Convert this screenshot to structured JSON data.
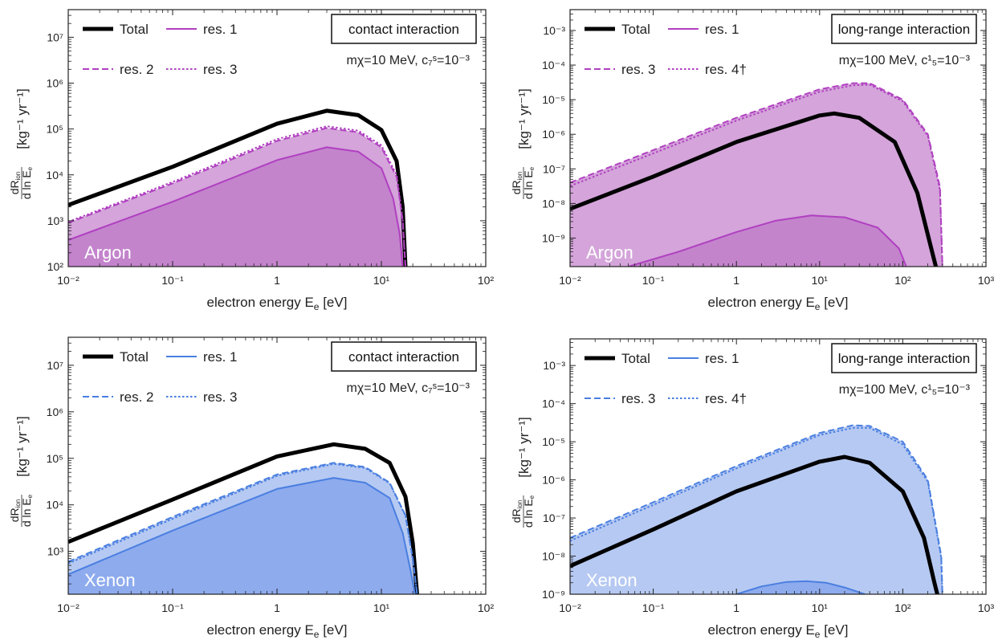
{
  "figure": {
    "xlabel": "electron energy E",
    "xlabel_sub": "e",
    "xlabel_unit": "[eV]",
    "ylabel_frac_num": "dR",
    "ylabel_frac_num_sub": "ion",
    "ylabel_frac_den": "d ln E",
    "ylabel_frac_den_sub": "e",
    "ylabel_unit": "[kg⁻¹ yr⁻¹]"
  },
  "colors": {
    "argon_line": "#b040c0",
    "argon_fill_light": "#d4a4da",
    "argon_fill_dark": "#c384cc",
    "xenon_line": "#4a7fe0",
    "xenon_fill_light": "#b6c9f2",
    "xenon_fill_dark": "#8eabee",
    "total": "#000000"
  },
  "chart_data": [
    {
      "type": "line",
      "panel": "top-left",
      "target": "Argon",
      "interaction": "contact interaction",
      "param_mass": "mχ=10 MeV,",
      "param_coupling": "c₇ˢ=10⁻³",
      "xscale": "log",
      "yscale": "log",
      "xlim": [
        0.01,
        100
      ],
      "ylim": [
        100,
        40000000
      ],
      "xticks": [
        "10⁻²",
        "10⁻¹",
        "1",
        "10¹",
        "10²"
      ],
      "yticks": [
        "10²",
        "10³",
        "10⁴",
        "10⁵",
        "10⁶",
        "10⁷"
      ],
      "legend": [
        "Total",
        "res. 1",
        "res. 2",
        "res. 3"
      ],
      "series": [
        {
          "name": "Total",
          "style": "thick",
          "x": [
            0.01,
            0.1,
            1,
            3,
            6,
            10,
            14,
            16,
            17
          ],
          "y": [
            2200,
            15000,
            130000,
            250000,
            200000,
            95000,
            20000,
            2000,
            100
          ]
        },
        {
          "name": "res. 1",
          "style": "solid",
          "x": [
            0.01,
            0.1,
            1,
            3,
            6,
            10,
            13,
            15,
            16
          ],
          "y": [
            380,
            2600,
            21000,
            40000,
            32000,
            14000,
            3000,
            500,
            100
          ]
        },
        {
          "name": "res. 2",
          "style": "dashed",
          "x": [
            0.01,
            0.1,
            1,
            3,
            6,
            10,
            14,
            16,
            17
          ],
          "y": [
            900,
            6500,
            55000,
            105000,
            85000,
            40000,
            9000,
            1000,
            100
          ]
        },
        {
          "name": "res. 3",
          "style": "dotted",
          "x": [
            0.01,
            0.1,
            1,
            3,
            6,
            10,
            14,
            16,
            17
          ],
          "y": [
            950,
            7000,
            60000,
            115000,
            92000,
            44000,
            10000,
            1100,
            100
          ]
        }
      ]
    },
    {
      "type": "line",
      "panel": "top-right",
      "target": "Argon",
      "interaction": "long-range interaction",
      "param_mass": "mχ=100 MeV,",
      "param_coupling": "c¹₅=10⁻³",
      "xscale": "log",
      "yscale": "log",
      "xlim": [
        0.01,
        1000
      ],
      "ylim": [
        1.5e-10,
        0.004
      ],
      "xticks": [
        "10⁻²",
        "10⁻¹",
        "1",
        "10¹",
        "10²",
        "10³"
      ],
      "yticks": [
        "10⁻⁹",
        "10⁻⁸",
        "10⁻⁷",
        "10⁻⁶",
        "10⁻⁵",
        "10⁻⁴",
        "10⁻³"
      ],
      "legend": [
        "Total",
        "res. 1",
        "res. 3",
        "res. 4†"
      ],
      "series": [
        {
          "name": "Total",
          "style": "thick",
          "x": [
            0.01,
            0.1,
            1,
            10,
            15,
            30,
            80,
            150,
            220,
            250
          ],
          "y": [
            7e-09,
            6e-08,
            6e-07,
            3.5e-06,
            4e-06,
            3e-06,
            6e-07,
            2e-08,
            5e-10,
            1.5e-10
          ]
        },
        {
          "name": "res. 1",
          "style": "solid",
          "x": [
            0.05,
            0.2,
            1,
            3,
            8,
            20,
            50,
            90,
            110
          ],
          "y": [
            1.5e-10,
            4e-10,
            1.5e-09,
            3.2e-09,
            4.5e-09,
            4e-09,
            2e-09,
            5e-10,
            1.5e-10
          ]
        },
        {
          "name": "res. 3",
          "style": "dashed",
          "x": [
            0.01,
            0.1,
            1,
            10,
            25,
            40,
            100,
            200,
            280,
            300
          ],
          "y": [
            4e-08,
            3.5e-07,
            3e-06,
            2e-05,
            3e-05,
            3e-05,
            1e-05,
            1e-06,
            3e-08,
            1.5e-10
          ]
        },
        {
          "name": "res. 4†",
          "style": "dotted",
          "x": [
            0.01,
            0.1,
            1,
            10,
            25,
            40,
            100,
            200,
            280,
            300
          ],
          "y": [
            3.2e-08,
            2.8e-07,
            2.5e-06,
            1.7e-05,
            2.6e-05,
            2.7e-05,
            9e-06,
            9e-07,
            2.5e-08,
            1.5e-10
          ]
        }
      ]
    },
    {
      "type": "line",
      "panel": "bottom-left",
      "target": "Xenon",
      "interaction": "contact interaction",
      "param_mass": "mχ=10 MeV,",
      "param_coupling": "c₇ˢ=10⁻³",
      "xscale": "log",
      "yscale": "log",
      "xlim": [
        0.01,
        100
      ],
      "ylim": [
        120,
        40000000
      ],
      "xticks": [
        "10⁻²",
        "10⁻¹",
        "1",
        "10¹",
        "10²"
      ],
      "yticks": [
        "10³",
        "10⁴",
        "10⁵",
        "10⁶",
        "10⁷"
      ],
      "legend": [
        "Total",
        "res. 1",
        "res. 2",
        "res. 3"
      ],
      "series": [
        {
          "name": "Total",
          "style": "thick",
          "x": [
            0.01,
            0.1,
            1,
            3.5,
            7,
            12,
            17,
            20,
            22
          ],
          "y": [
            1600,
            13000,
            110000,
            200000,
            160000,
            80000,
            15000,
            1500,
            120
          ]
        },
        {
          "name": "res. 1",
          "style": "solid",
          "x": [
            0.01,
            0.1,
            1,
            3.5,
            7,
            12,
            16,
            19,
            21
          ],
          "y": [
            320,
            2800,
            22000,
            38000,
            30000,
            14000,
            2500,
            400,
            120
          ]
        },
        {
          "name": "res. 2",
          "style": "dashed",
          "x": [
            0.01,
            0.1,
            1,
            3.5,
            7,
            12,
            17,
            20,
            22
          ],
          "y": [
            600,
            5500,
            45000,
            80000,
            65000,
            30000,
            6000,
            700,
            120
          ]
        },
        {
          "name": "res. 3",
          "style": "dotted",
          "x": [
            0.01,
            0.1,
            1,
            3.5,
            7,
            12,
            17,
            20,
            22
          ],
          "y": [
            550,
            5000,
            42000,
            76000,
            62000,
            29000,
            5800,
            680,
            120
          ]
        }
      ]
    },
    {
      "type": "line",
      "panel": "bottom-right",
      "target": "Xenon",
      "interaction": "long-range interaction",
      "param_mass": "mχ=100 MeV,",
      "param_coupling": "c¹₅=10⁻³",
      "xscale": "log",
      "yscale": "log",
      "xlim": [
        0.01,
        1000
      ],
      "ylim": [
        1e-09,
        0.005
      ],
      "xticks": [
        "10⁻²",
        "10⁻¹",
        "1",
        "10¹",
        "10²",
        "10³"
      ],
      "yticks": [
        "10⁻⁹",
        "10⁻⁸",
        "10⁻⁷",
        "10⁻⁶",
        "10⁻⁵",
        "10⁻⁴",
        "10⁻³"
      ],
      "legend": [
        "Total",
        "res. 1",
        "res. 3",
        "res. 4†"
      ],
      "series": [
        {
          "name": "Total",
          "style": "thick",
          "x": [
            0.01,
            0.1,
            1,
            10,
            20,
            40,
            100,
            180,
            240,
            260
          ],
          "y": [
            5.5e-09,
            5e-08,
            5e-07,
            3e-06,
            4e-06,
            2.8e-06,
            5e-07,
            3e-08,
            2e-09,
            1e-09
          ]
        },
        {
          "name": "res. 1",
          "style": "solid",
          "x": [
            1,
            2,
            4,
            7,
            12,
            20,
            35
          ],
          "y": [
            1e-09,
            1.6e-09,
            2.1e-09,
            2.2e-09,
            2e-09,
            1.5e-09,
            1e-09
          ]
        },
        {
          "name": "res. 3",
          "style": "dashed",
          "x": [
            0.01,
            0.1,
            1,
            10,
            25,
            40,
            100,
            200,
            290,
            300
          ],
          "y": [
            3e-08,
            2.6e-07,
            2.3e-06,
            1.7e-05,
            2.7e-05,
            2.6e-05,
            1e-05,
            1e-06,
            1e-08,
            1e-09
          ]
        },
        {
          "name": "res. 4†",
          "style": "dotted",
          "x": [
            0.01,
            0.1,
            1,
            10,
            25,
            40,
            100,
            200,
            290,
            300
          ],
          "y": [
            2.5e-08,
            2.2e-07,
            2e-06,
            1.5e-05,
            2.3e-05,
            2.3e-05,
            8.5e-06,
            9e-07,
            9e-09,
            1e-09
          ]
        }
      ]
    }
  ]
}
